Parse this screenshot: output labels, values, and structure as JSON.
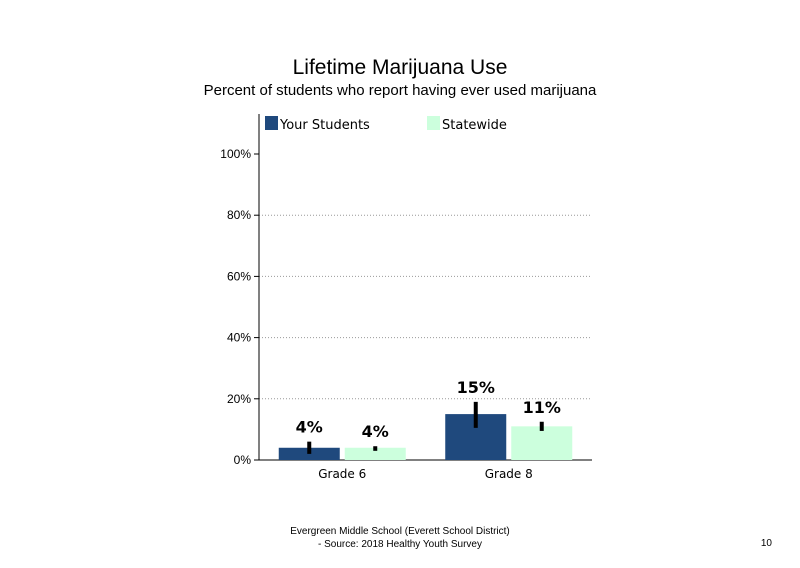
{
  "chart_data": {
    "type": "bar",
    "title": "Lifetime Marijuana Use",
    "subtitle": "Percent of students who report having ever used marijuana",
    "categories": [
      "Grade 6",
      "Grade 8"
    ],
    "series": [
      {
        "name": "Your Students",
        "color": "#1F497D",
        "values": [
          4,
          15
        ],
        "labels": [
          "4%",
          "15%"
        ],
        "error": [
          [
            2,
            6
          ],
          [
            10.5,
            19
          ]
        ]
      },
      {
        "name": "Statewide",
        "color": "#CCFFDD",
        "values": [
          4,
          11
        ],
        "labels": [
          "4%",
          "11%"
        ],
        "error": [
          [
            3,
            4.5
          ],
          [
            9.5,
            12.5
          ]
        ]
      }
    ],
    "ylim": [
      0,
      100
    ],
    "yticks": [
      0,
      20,
      40,
      60,
      80,
      100
    ],
    "ytick_labels": [
      "0%",
      "20%",
      "40%",
      "60%",
      "80%",
      "100%"
    ],
    "grid": "dotted",
    "legend_position": "top"
  },
  "footer": {
    "line1": "Evergreen Middle School (Everett School District)",
    "line2": "- Source: 2018 Healthy Youth Survey"
  },
  "page_number": "10"
}
